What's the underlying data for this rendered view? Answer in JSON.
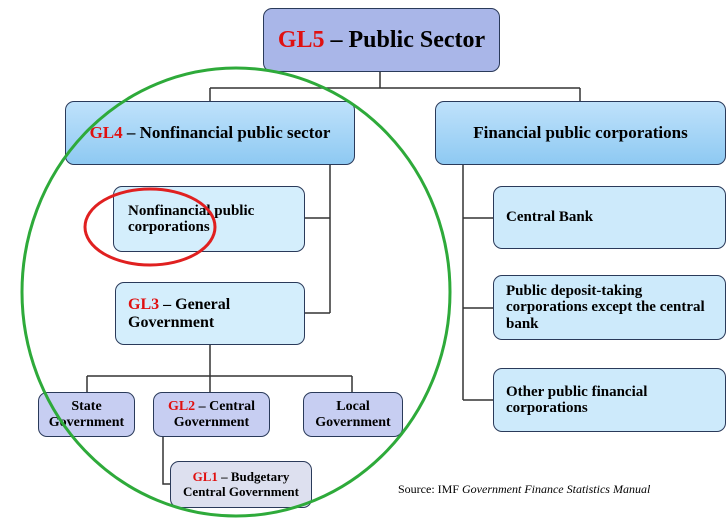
{
  "nodes": [
    {
      "code": "GL5",
      "label": "– Public Sector"
    },
    {
      "code": "GL4",
      "label": "– Nonfinancial public sector"
    },
    {
      "label": "Financial public corporations"
    },
    {
      "label": "Nonfinancial public corporations"
    },
    {
      "code": "GL3",
      "label": "– General Government"
    },
    {
      "label": "State Government"
    },
    {
      "code": "GL2",
      "label": "– Central Government"
    },
    {
      "label": "Local Government"
    },
    {
      "code": "GL1",
      "label": "– Budgetary Central Government"
    },
    {
      "label": "Central Bank"
    },
    {
      "label": "Public deposit-taking corporations except the central bank"
    },
    {
      "label": "Other public financial corporations"
    }
  ],
  "source": {
    "prefix": "Source: IMF",
    "title": "Government Finance Statistics Manual"
  }
}
